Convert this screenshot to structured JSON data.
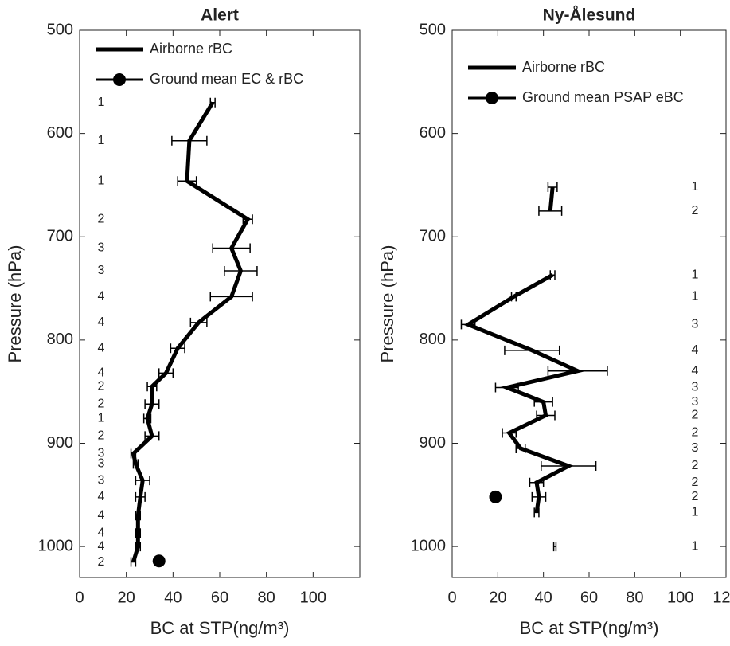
{
  "chart_data": [
    {
      "type": "line",
      "title": "Alert",
      "xlabel": "BC at STP(ng/m³)",
      "ylabel": "Pressure (hPa)",
      "xlim": [
        0,
        120
      ],
      "xticks": [
        0,
        20,
        40,
        60,
        80,
        100
      ],
      "ylim": [
        500,
        1030
      ],
      "yticks": [
        500,
        600,
        700,
        800,
        900,
        1000
      ],
      "y_reversed": true,
      "pressure": [
        570,
        607,
        646,
        683,
        711,
        733,
        758,
        783,
        808,
        832,
        845,
        862,
        876,
        893,
        910,
        920,
        936,
        952,
        970,
        987,
        1000,
        1015
      ],
      "series": [
        {
          "name": "Airborne rBC",
          "color": "#000000",
          "values": [
            57,
            47,
            46,
            72,
            65,
            69,
            65,
            51,
            42,
            37,
            31,
            31,
            29,
            31,
            23,
            24,
            27,
            26,
            25,
            25,
            25,
            23
          ],
          "errors": [
            1,
            7.5,
            4,
            2,
            8,
            7,
            9,
            3.5,
            3,
            3,
            2,
            3,
            1.5,
            3,
            1,
            1,
            3,
            2,
            1,
            1,
            1,
            1
          ]
        }
      ],
      "ground": {
        "name": "Ground mean EC & rBC",
        "color": "#000000",
        "values": [
          34
        ],
        "pressure": [
          1014
        ]
      },
      "counts": [
        1,
        1,
        1,
        2,
        3,
        3,
        4,
        4,
        4,
        4,
        2,
        2,
        1,
        2,
        3,
        3,
        3,
        4,
        4,
        4,
        4,
        2
      ]
    },
    {
      "type": "line",
      "title": "Ny-Ålesund",
      "xlabel": "BC at STP(ng/m³)",
      "ylabel": "Pressure (hPa)",
      "xlim": [
        0,
        120
      ],
      "xticks": [
        0,
        20,
        40,
        60,
        80,
        100,
        120
      ],
      "ylim": [
        500,
        1030
      ],
      "yticks": [
        500,
        600,
        700,
        800,
        900,
        1000
      ],
      "y_reversed": true,
      "pressure": [
        652,
        675,
        null,
        737,
        758,
        785,
        810,
        830,
        846,
        860,
        873,
        890,
        905,
        922,
        938,
        952,
        967,
        null,
        1000
      ],
      "series": [
        {
          "name": "Airborne rBC",
          "color": "#000000",
          "values": [
            44,
            43,
            null,
            44,
            27,
            7,
            35,
            55,
            24,
            40,
            41,
            25,
            30,
            51,
            37,
            38,
            37,
            null,
            45
          ],
          "errors": [
            2,
            5,
            null,
            1,
            1,
            3,
            12,
            13,
            5,
            4,
            4,
            3,
            2,
            12,
            3,
            3,
            1,
            null,
            0.5
          ]
        }
      ],
      "ground": {
        "name": "Ground mean PSAP eBC",
        "color": "#000000",
        "values": [
          19
        ],
        "pressure": [
          952
        ]
      },
      "counts": [
        1,
        2,
        null,
        1,
        1,
        3,
        4,
        4,
        3,
        3,
        2,
        2,
        3,
        2,
        2,
        2,
        1,
        null,
        1
      ]
    }
  ]
}
